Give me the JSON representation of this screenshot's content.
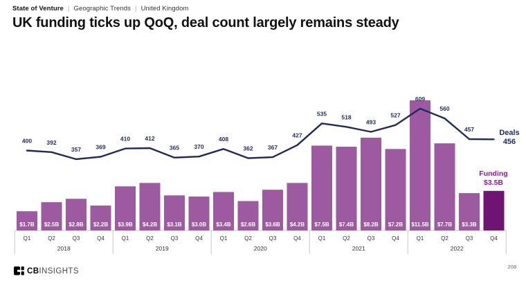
{
  "breadcrumb": {
    "separator": "|",
    "items": [
      "State of Venture",
      "Geographic Trends",
      "United Kingdom"
    ]
  },
  "title": "UK funding ticks up QoQ, deal count largely remains steady",
  "chart_data": {
    "type": "combo",
    "title": "UK quarterly funding and deal count",
    "categories": [
      "Q1",
      "Q2",
      "Q3",
      "Q4",
      "Q1",
      "Q2",
      "Q3",
      "Q4",
      "Q1",
      "Q2",
      "Q3",
      "Q4",
      "Q1",
      "Q2",
      "Q3",
      "Q4",
      "Q1",
      "Q2",
      "Q3",
      "Q4"
    ],
    "years": [
      "2018",
      "2019",
      "2020",
      "2021",
      "2022"
    ],
    "series": [
      {
        "name": "Funding",
        "type": "bar",
        "unit": "$B",
        "values": [
          1.7,
          2.5,
          2.8,
          2.2,
          3.9,
          4.2,
          3.1,
          3.0,
          3.4,
          2.6,
          3.6,
          4.2,
          7.5,
          7.4,
          8.2,
          7.2,
          11.5,
          7.7,
          3.3,
          3.5
        ],
        "labels": [
          "$1.7B",
          "$2.5B",
          "$2.8B",
          "$2.2B",
          "$3.9B",
          "$4.2B",
          "$3.1B",
          "$3.0B",
          "$3.4B",
          "$2.6B",
          "$3.6B",
          "$4.2B",
          "$7.5B",
          "$7.4B",
          "$8.2B",
          "$7.2B",
          "$11.5B",
          "$7.7B",
          "$3.3B",
          ""
        ],
        "highlight_index": 19
      },
      {
        "name": "Deals",
        "type": "line",
        "values": [
          400,
          392,
          357,
          369,
          410,
          412,
          365,
          370,
          408,
          362,
          367,
          427,
          535,
          518,
          493,
          527,
          609,
          560,
          457,
          456
        ]
      }
    ],
    "axes": {
      "funding": {
        "min": 0,
        "max": 11.5
      },
      "deals": {
        "min": 350,
        "max": 650
      }
    },
    "grid": false,
    "legend_position": "right",
    "annotations": {
      "deals_label": "Deals",
      "deals_value": "456",
      "funding_label": "Funding",
      "funding_value": "$3.5B"
    }
  },
  "colors": {
    "bar": "#9D5AA0",
    "bar_highlight": "#701473",
    "line": "#1F2A5C",
    "deal_label": "#1F2A5C",
    "bar_value_label": "#FFFFFF",
    "funding_annotation": "#8D1A91",
    "axis_text": "#333333",
    "separator": "#C8C8C8"
  },
  "footer": {
    "logo_bold": "CB",
    "logo_rest": "INSIGHTS",
    "page_number": "208"
  }
}
